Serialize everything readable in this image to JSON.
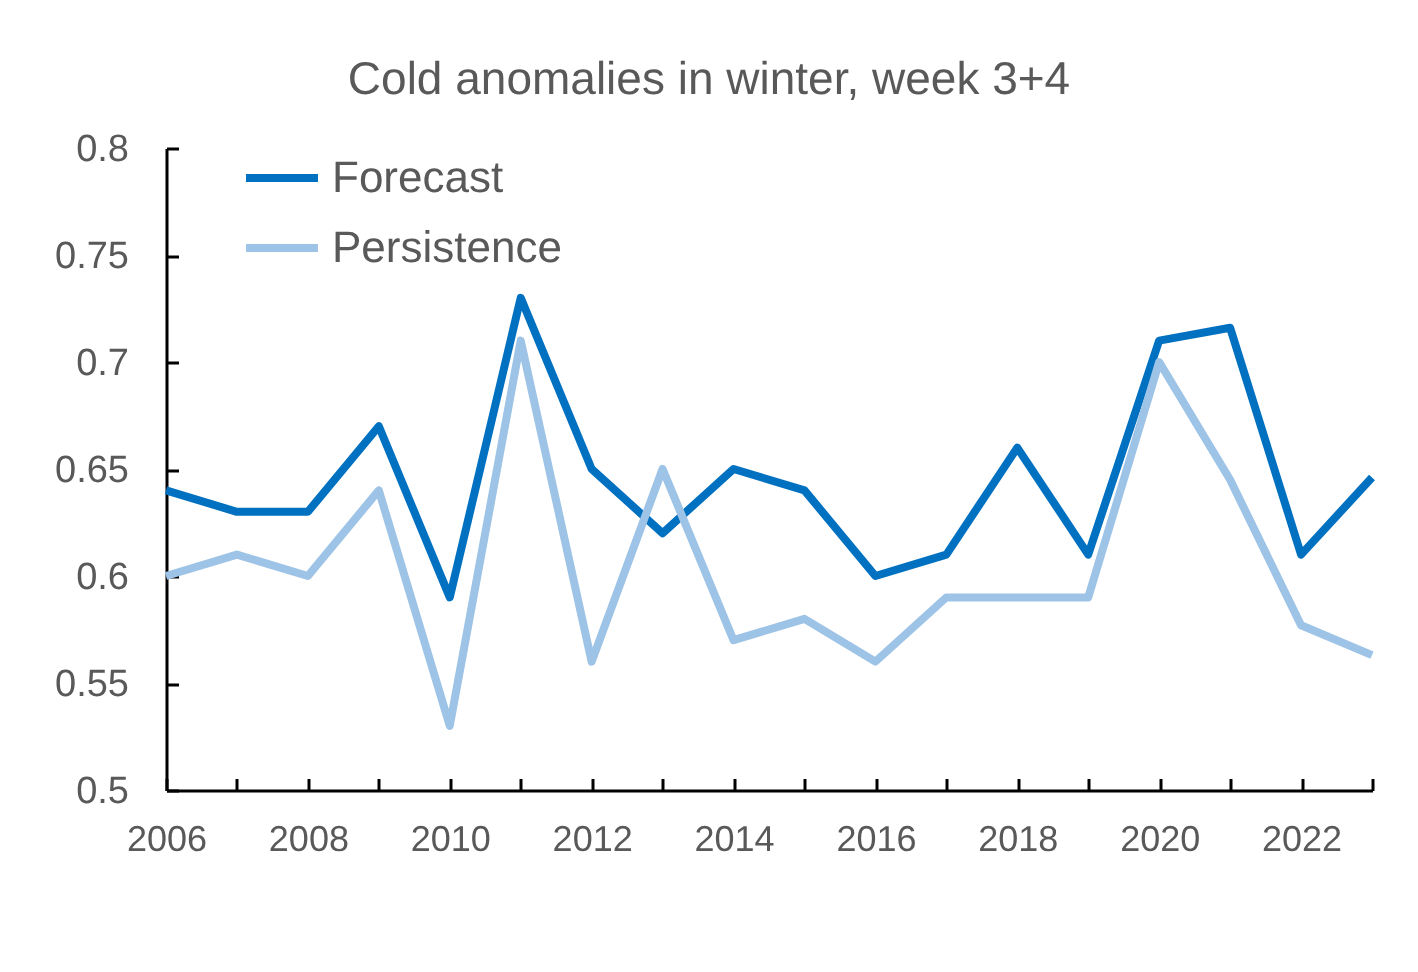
{
  "chart_data": {
    "type": "line",
    "title": "Cold anomalies in winter, week 3+4",
    "x": [
      2006,
      2007,
      2008,
      2009,
      2010,
      2011,
      2012,
      2013,
      2014,
      2015,
      2016,
      2017,
      2018,
      2019,
      2020,
      2021,
      2022,
      2023
    ],
    "series": [
      {
        "name": "Forecast",
        "color": "#0070c0",
        "values": [
          0.64,
          0.63,
          0.63,
          0.67,
          0.59,
          0.73,
          0.65,
          0.62,
          0.65,
          0.64,
          0.6,
          0.61,
          0.66,
          0.61,
          0.71,
          0.716,
          0.61,
          0.646
        ]
      },
      {
        "name": "Persistence",
        "color": "#9dc3e6",
        "values": [
          0.6,
          0.61,
          0.6,
          0.64,
          0.53,
          0.71,
          0.56,
          0.65,
          0.57,
          0.58,
          0.56,
          0.59,
          0.59,
          0.59,
          0.7,
          0.645,
          0.577,
          0.563
        ]
      }
    ],
    "xlim": [
      2006,
      2023
    ],
    "xticks": [
      2006,
      {
        "value": 2007,
        "label": null
      },
      2008,
      {
        "value": 2009,
        "label": null
      },
      2010,
      {
        "value": 2011,
        "label": null
      },
      2012,
      {
        "value": 2013,
        "label": null
      },
      2014,
      {
        "value": 2015,
        "label": null
      },
      2016,
      {
        "value": 2017,
        "label": null
      },
      2018,
      {
        "value": 2019,
        "label": null
      },
      2020,
      {
        "value": 2021,
        "label": null
      },
      2022,
      {
        "value": 2023,
        "label": null
      }
    ],
    "ylim": [
      0.5,
      0.8
    ],
    "yticks": [
      0.5,
      0.55,
      0.6,
      0.65,
      0.7,
      0.75,
      0.8
    ],
    "legend": "top left"
  }
}
